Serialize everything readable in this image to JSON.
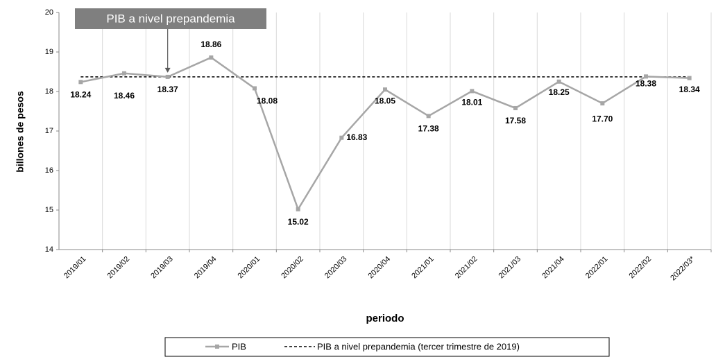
{
  "chart_data": {
    "type": "line",
    "categories": [
      "2019/01",
      "2019/02",
      "2019/03",
      "2019/04",
      "2020/01",
      "2020/02",
      "2020/03",
      "2020/04",
      "2021/01",
      "2021/02",
      "2021/03",
      "2021/04",
      "2022/01",
      "2022/02",
      "2022/03*"
    ],
    "series": [
      {
        "name": "PIB",
        "color": "#a6a6a6",
        "values": [
          18.24,
          18.46,
          18.37,
          18.86,
          18.08,
          15.02,
          16.83,
          18.05,
          17.38,
          18.01,
          17.58,
          18.25,
          17.7,
          18.38,
          18.34
        ],
        "value_labels": [
          "18.24",
          "18.46",
          "18.37",
          "18.86",
          "18.08",
          "15.02",
          "16.83",
          "18.05",
          "17.38",
          "18.01",
          "17.58",
          "18.25",
          "17.70",
          "18.38",
          "18.34"
        ]
      }
    ],
    "reference": {
      "name": "PIB a nivel prepandemia (tercer trimestre de 2019)",
      "value": 18.37,
      "color": "#000000"
    },
    "annotation": "PIB a nivel prepandemia",
    "y_label": "billones de pesos",
    "x_label": "periodo",
    "ylim": [
      14,
      20
    ],
    "yticks": [
      14,
      15,
      16,
      17,
      18,
      19,
      20
    ],
    "grid": true
  }
}
